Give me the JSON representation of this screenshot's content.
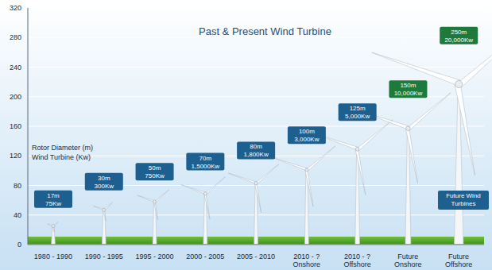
{
  "chart_data": {
    "type": "bar",
    "title": "Past & Present Wind Turbine",
    "annotations": [
      "Rotor Diameter (m)",
      "Wind Turbine (Kw)",
      "Future Wind Turbines"
    ],
    "categories": [
      "1980 - 1990",
      "1990 - 1995",
      "1995 - 2000",
      "2000 - 2005",
      "2005 - 2010",
      "2010 - ? Onshore",
      "2010 - ? Offshore",
      "Future Onshore",
      "Future Offshore"
    ],
    "values": [
      25,
      47,
      58,
      69,
      83,
      101,
      129,
      157,
      217
    ],
    "rotor_diameter": [
      17,
      30,
      50,
      70,
      80,
      100,
      125,
      150,
      250
    ],
    "diameter_labels": [
      "17m",
      "30m",
      "50m",
      "70m",
      "80m",
      "100m",
      "125m",
      "150m",
      "250m"
    ],
    "power_labels": [
      "75Kw",
      "300Kw",
      "750Kw",
      "1,5000Kw",
      "1,800Kw",
      "3,000Kw",
      "5,000Kw",
      "10,000Kw",
      "20,000Kw"
    ],
    "colors": [
      "#1d5f8f",
      "#1d5f8f",
      "#1d5f8f",
      "#1d5f8f",
      "#1d5f8f",
      "#1d5f8f",
      "#1d5f8f",
      "#1e7a3a",
      "#1e7a3a"
    ],
    "ylim": [
      0,
      320
    ],
    "yticks": [
      0,
      40,
      80,
      120,
      160,
      200,
      240,
      280,
      320
    ],
    "grid": true
  }
}
